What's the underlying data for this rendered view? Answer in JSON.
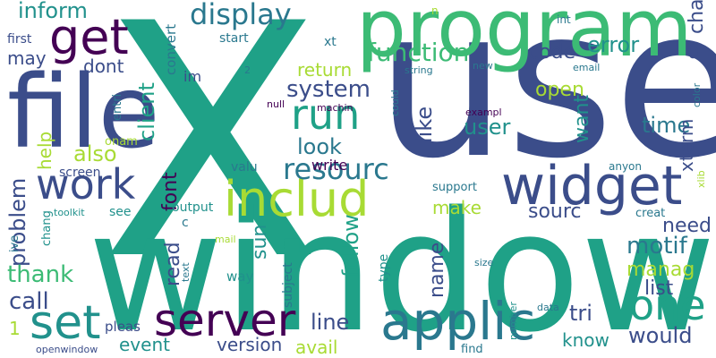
{
  "palette": {
    "dark_purple": "#440154",
    "indigo": "#3b4d8a",
    "teal_blue": "#2a788e",
    "teal": "#21918c",
    "sea_green": "#1fa187",
    "green": "#3cbb75",
    "lime": "#a8db34"
  },
  "words": [
    {
      "text": "X",
      "color": "sea_green"
    },
    {
      "text": "use",
      "color": "indigo"
    },
    {
      "text": "window",
      "color": "sea_green"
    },
    {
      "text": "file",
      "color": "indigo"
    },
    {
      "text": "program",
      "color": "green"
    },
    {
      "text": "widget",
      "color": "indigo"
    },
    {
      "text": "applic",
      "color": "teal_blue"
    },
    {
      "text": "server",
      "color": "dark_purple"
    },
    {
      "text": "get",
      "color": "dark_purple"
    },
    {
      "text": "includ",
      "color": "lime"
    },
    {
      "text": "work",
      "color": "indigo"
    },
    {
      "text": "set",
      "color": "teal"
    },
    {
      "text": "run",
      "color": "sea_green"
    },
    {
      "text": "one",
      "color": "sea_green"
    },
    {
      "text": "display",
      "color": "teal_blue"
    },
    {
      "text": "resourc",
      "color": "teal_blue"
    },
    {
      "text": "function",
      "color": "green"
    },
    {
      "text": "system",
      "color": "indigo"
    },
    {
      "text": "inform",
      "color": "teal"
    },
    {
      "text": "error",
      "color": "teal"
    },
    {
      "text": "motif",
      "color": "teal_blue"
    },
    {
      "text": "problem",
      "color": "indigo"
    },
    {
      "text": "would",
      "color": "indigo"
    },
    {
      "text": "also",
      "color": "lime"
    },
    {
      "text": "like",
      "color": "indigo"
    },
    {
      "text": "user",
      "color": "teal"
    },
    {
      "text": "time",
      "color": "teal_blue"
    },
    {
      "text": "client",
      "color": "sea_green"
    },
    {
      "text": "xterm",
      "color": "indigo"
    },
    {
      "text": "look",
      "color": "teal_blue"
    },
    {
      "text": "follow",
      "color": "sea_green"
    },
    {
      "text": "name",
      "color": "indigo"
    },
    {
      "text": "line",
      "color": "indigo"
    },
    {
      "text": "tri",
      "color": "indigo"
    },
    {
      "text": "manag",
      "color": "lime"
    },
    {
      "text": "list",
      "color": "indigo"
    },
    {
      "text": "call",
      "color": "indigo"
    },
    {
      "text": "thank",
      "color": "green"
    },
    {
      "text": "read",
      "color": "indigo"
    },
    {
      "text": "font",
      "color": "dark_purple"
    },
    {
      "text": "need",
      "color": "indigo"
    },
    {
      "text": "sourc",
      "color": "indigo"
    },
    {
      "text": "code",
      "color": "indigo"
    },
    {
      "text": "open",
      "color": "lime"
    },
    {
      "text": "return",
      "color": "lime"
    },
    {
      "text": "want",
      "color": "teal"
    },
    {
      "text": "char",
      "color": "indigo"
    },
    {
      "text": "sun",
      "color": "teal"
    },
    {
      "text": "make",
      "color": "lime"
    },
    {
      "text": "avail",
      "color": "lime"
    },
    {
      "text": "version",
      "color": "indigo"
    },
    {
      "text": "event",
      "color": "teal"
    },
    {
      "text": "know",
      "color": "teal"
    },
    {
      "text": "may",
      "color": "indigo"
    },
    {
      "text": "dont",
      "color": "indigo"
    },
    {
      "text": "convert",
      "color": "teal_blue"
    },
    {
      "text": "help",
      "color": "lime"
    },
    {
      "text": "start",
      "color": "teal_blue"
    },
    {
      "text": "im",
      "color": "indigo"
    },
    {
      "text": "xt",
      "color": "teal_blue"
    },
    {
      "text": "0",
      "color": "indigo"
    },
    {
      "text": "write",
      "color": "dark_purple"
    },
    {
      "text": "valu",
      "color": "teal_blue"
    },
    {
      "text": "screen",
      "color": "indigo"
    },
    {
      "text": "output",
      "color": "teal"
    },
    {
      "text": "see",
      "color": "teal"
    },
    {
      "text": "way",
      "color": "teal"
    },
    {
      "text": "subject",
      "color": "teal_blue"
    },
    {
      "text": "type",
      "color": "teal"
    },
    {
      "text": "support",
      "color": "teal_blue"
    },
    {
      "text": "creat",
      "color": "teal_blue"
    },
    {
      "text": "pleas",
      "color": "indigo"
    },
    {
      "text": "first",
      "color": "indigo"
    },
    {
      "text": "entri",
      "color": "teal_blue"
    },
    {
      "text": "onam",
      "color": "lime"
    },
    {
      "text": "chang",
      "color": "teal"
    },
    {
      "text": "ive",
      "color": "teal_blue"
    },
    {
      "text": "toolkit",
      "color": "teal"
    },
    {
      "text": "mail",
      "color": "lime"
    },
    {
      "text": "text",
      "color": "teal_blue"
    },
    {
      "text": "color",
      "color": "teal_blue"
    },
    {
      "text": "xlib",
      "color": "lime"
    },
    {
      "text": "anyon",
      "color": "teal_blue"
    },
    {
      "text": "int",
      "color": "teal_blue"
    },
    {
      "text": "new",
      "color": "teal_blue"
    },
    {
      "text": "email",
      "color": "teal_blue"
    },
    {
      "text": "string",
      "color": "teal_blue"
    },
    {
      "text": "could",
      "color": "teal_blue"
    },
    {
      "text": "exampl",
      "color": "dark_purple"
    },
    {
      "text": "machin",
      "color": "dark_purple"
    },
    {
      "text": "null",
      "color": "dark_purple"
    },
    {
      "text": "number",
      "color": "teal"
    },
    {
      "text": "data",
      "color": "teal_blue"
    },
    {
      "text": "size",
      "color": "teal_blue"
    },
    {
      "text": "find",
      "color": "teal_blue"
    },
    {
      "text": "openwindow",
      "color": "indigo"
    },
    {
      "text": "c",
      "color": "teal_blue"
    },
    {
      "text": "1",
      "color": "lime"
    },
    {
      "text": "2",
      "color": "teal_blue"
    },
    {
      "text": "n",
      "color": "lime"
    }
  ]
}
